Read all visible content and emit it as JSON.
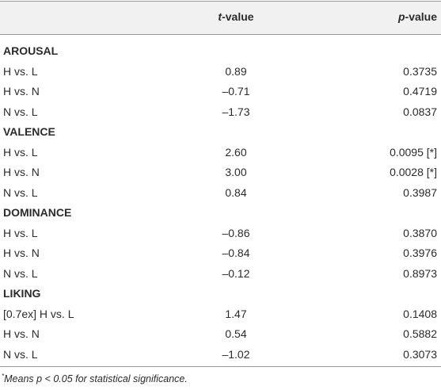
{
  "table": {
    "columns": [
      {
        "symbol": "t",
        "suffix": "-value"
      },
      {
        "symbol": "p",
        "suffix": "-value"
      }
    ],
    "sections": [
      {
        "name": "AROUSAL",
        "rows": [
          [
            "H vs. L",
            "0.89",
            "0.3735"
          ],
          [
            "H vs. N",
            "–0.71",
            "0.4719"
          ],
          [
            "N vs. L",
            "–1.73",
            "0.0837"
          ]
        ]
      },
      {
        "name": "VALENCE",
        "rows": [
          [
            "H vs. L",
            "2.60",
            "0.0095 [*]"
          ],
          [
            "H vs. N",
            "3.00",
            "0.0028 [*]"
          ],
          [
            "N vs. L",
            "0.84",
            "0.3987"
          ]
        ]
      },
      {
        "name": "DOMINANCE",
        "rows": [
          [
            "H vs. L",
            "–0.86",
            "0.3870"
          ],
          [
            "H vs. N",
            "–0.84",
            "0.3976"
          ],
          [
            "N vs. L",
            "–0.12",
            "0.8973"
          ]
        ]
      },
      {
        "name": "LIKING",
        "rows": [
          [
            "[0.7ex] H vs. L",
            "1.47",
            "0.1408"
          ],
          [
            "H vs. N",
            "0.54",
            "0.5882"
          ],
          [
            "N vs. L",
            "–1.02",
            "0.3073"
          ]
        ]
      }
    ],
    "footnote": {
      "marker": "*",
      "text": "Means p < 0.05 for statistical significance."
    }
  }
}
